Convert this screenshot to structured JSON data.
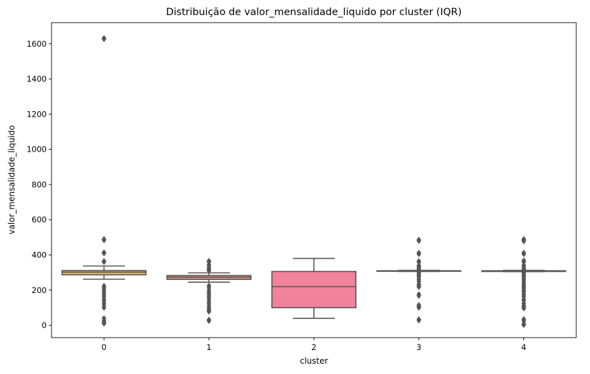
{
  "chart_data": {
    "type": "box",
    "title": "Distribuição de valor_mensalidade_liquido por cluster (IQR)",
    "xlabel": "cluster",
    "ylabel": "valor_mensalidade_liquido",
    "categories": [
      "0",
      "1",
      "2",
      "3",
      "4"
    ],
    "ylim": [
      -70,
      1720
    ],
    "yticks": [
      0,
      200,
      400,
      600,
      800,
      1000,
      1200,
      1400,
      1600
    ],
    "ytick_labels": [
      "0",
      "200",
      "400",
      "600",
      "800",
      "1000",
      "1200",
      "1400",
      "1600"
    ],
    "grid": false,
    "legend": "none",
    "box_edge_color": "#555555",
    "boxes": [
      {
        "cluster": "0",
        "color": "#e8b96a",
        "whislo": 262,
        "q1": 287,
        "med": 302,
        "q3": 311,
        "whishi": 337,
        "fliers": [
          1632,
          1627,
          490,
          484,
          414,
          409,
          365,
          360,
          224,
          213,
          203,
          190,
          178,
          165,
          150,
          138,
          126,
          114,
          100,
          40,
          28,
          18,
          10
        ]
      },
      {
        "cluster": "1",
        "color": "#e99a7c",
        "whislo": 245,
        "q1": 261,
        "med": 274,
        "q3": 283,
        "whishi": 298,
        "fliers": [
          366,
          360,
          345,
          334,
          324,
          315,
          310,
          226,
          213,
          198,
          186,
          175,
          163,
          150,
          135,
          122,
          108,
          96,
          86,
          78,
          32,
          25
        ]
      },
      {
        "cluster": "2",
        "color": "#f0829b",
        "whislo": 40,
        "q1": 100,
        "med": 220,
        "q3": 306,
        "whishi": 380,
        "fliers": []
      },
      {
        "cluster": "3",
        "color": "#f06ea0",
        "whislo": 306,
        "q1": 307,
        "med": 309,
        "q3": 310,
        "whishi": 312,
        "fliers": [
          486,
          480,
          412,
          405,
          365,
          358,
          340,
          333,
          325,
          318,
          299,
          290,
          282,
          275,
          262,
          250,
          234,
          226,
          218,
          176,
          168,
          115,
          108,
          100,
          34,
          28
        ]
      },
      {
        "cluster": "4",
        "color": "#ef62b4",
        "whislo": 305,
        "q1": 306,
        "med": 308,
        "q3": 310,
        "whishi": 312,
        "fliers": [
          490,
          484,
          478,
          412,
          405,
          368,
          360,
          342,
          333,
          324,
          316,
          298,
          290,
          282,
          272,
          262,
          252,
          240,
          230,
          220,
          212,
          200,
          190,
          176,
          165,
          150,
          140,
          124,
          112,
          103,
          96,
          35,
          25,
          8,
          2
        ]
      }
    ]
  }
}
